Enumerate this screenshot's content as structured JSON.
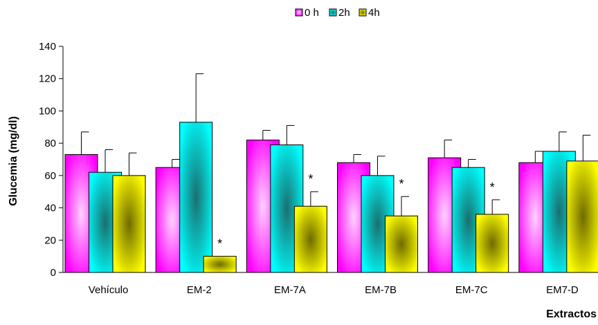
{
  "chart_data": {
    "type": "bar",
    "title": "",
    "xlabel": "Extractos",
    "ylabel": "Glucemia (mg/dl)",
    "ylim": [
      0,
      140
    ],
    "yticks": [
      0,
      20,
      40,
      60,
      80,
      100,
      120,
      140
    ],
    "grid": false,
    "legend_position": "top-center",
    "categories": [
      "Vehículo",
      "EM-2",
      "EM-7A",
      "EM-7B",
      "EM-7C",
      "EM7-D"
    ],
    "series": [
      {
        "name": "0 h",
        "color": "#ff00ff",
        "values": [
          73,
          65,
          82,
          68,
          71,
          68
        ],
        "errors": [
          14,
          5,
          6,
          5,
          11,
          7
        ]
      },
      {
        "name": "2h",
        "color": "#00ffff",
        "values": [
          62,
          93,
          79,
          60,
          65,
          75
        ],
        "errors": [
          14,
          30,
          12,
          12,
          5,
          12
        ]
      },
      {
        "name": "4h",
        "color": "#ffff00",
        "values": [
          60,
          10,
          41,
          35,
          36,
          69
        ],
        "errors": [
          14,
          0,
          9,
          12,
          9,
          16
        ]
      }
    ],
    "annotations": [
      {
        "category": "EM-2",
        "series": "4h",
        "text": "*"
      },
      {
        "category": "EM-7A",
        "series": "4h",
        "text": "*"
      },
      {
        "category": "EM-7B",
        "series": "4h",
        "text": "*"
      },
      {
        "category": "EM-7C",
        "series": "4h",
        "text": "*"
      }
    ]
  }
}
